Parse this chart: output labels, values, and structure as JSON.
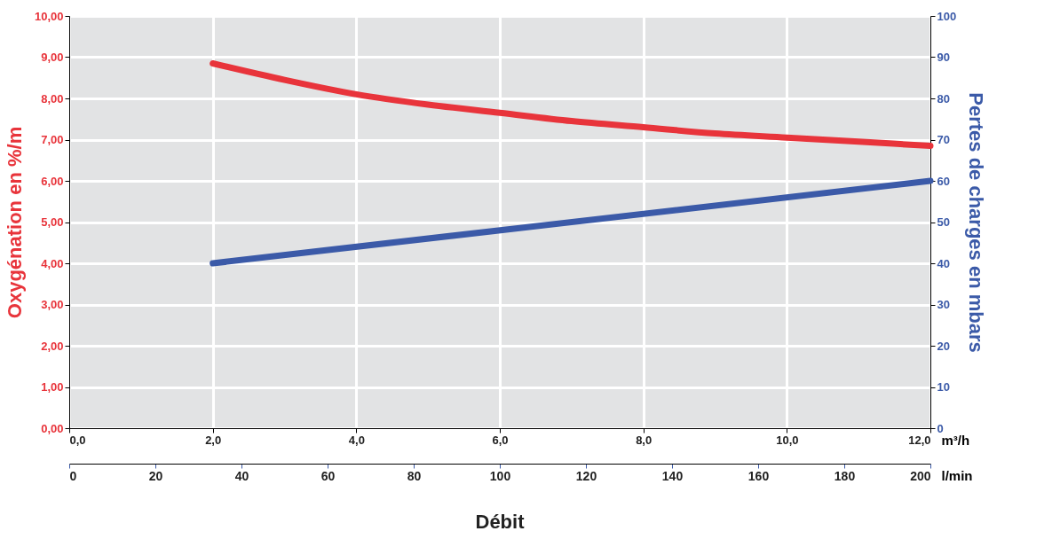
{
  "chart_data": {
    "type": "line",
    "xlabel": "m³/h",
    "x2label": "l/min",
    "ylabel": "Oxygénation en %/m",
    "y2label": "Pertes de charges en mbars",
    "annotations": [
      "Débit"
    ],
    "xlim": [
      0,
      12
    ],
    "xticks": [
      {
        "value": 0,
        "label": "0,0"
      },
      {
        "value": 2,
        "label": "2,0"
      },
      {
        "value": 4,
        "label": "4,0"
      },
      {
        "value": 6,
        "label": "6,0"
      },
      {
        "value": 8,
        "label": "8,0"
      },
      {
        "value": 10,
        "label": "10,0"
      },
      {
        "value": 12,
        "label": "12,0"
      }
    ],
    "x2lim": [
      0,
      200
    ],
    "x2ticks": [
      0,
      20,
      40,
      60,
      80,
      100,
      120,
      140,
      160,
      180,
      200
    ],
    "ylim": [
      0,
      10
    ],
    "yticks": [
      {
        "value": 0,
        "label": "0,00"
      },
      {
        "value": 1,
        "label": "1,00"
      },
      {
        "value": 2,
        "label": "2,00"
      },
      {
        "value": 3,
        "label": "3,00"
      },
      {
        "value": 4,
        "label": "4,00"
      },
      {
        "value": 5,
        "label": "5,00"
      },
      {
        "value": 6,
        "label": "6,00"
      },
      {
        "value": 7,
        "label": "7,00"
      },
      {
        "value": 8,
        "label": "8,00"
      },
      {
        "value": 9,
        "label": "9,00"
      },
      {
        "value": 10,
        "label": "10,00"
      }
    ],
    "y2lim": [
      0,
      100
    ],
    "y2ticks": [
      0,
      10,
      20,
      30,
      40,
      50,
      60,
      70,
      80,
      90,
      100
    ],
    "grid": true,
    "line_style": "solid",
    "series": [
      {
        "color": "#e8343b",
        "x": [
          2,
          3,
          4,
          5,
          6,
          7,
          8,
          9,
          10,
          11,
          12
        ],
        "values": [
          8.85,
          8.45,
          8.1,
          7.85,
          7.65,
          7.45,
          7.3,
          7.15,
          7.05,
          6.95,
          6.85
        ]
      },
      {
        "color": "#3b5aa8",
        "axis": "y2",
        "x": [
          2,
          12
        ],
        "values": [
          40,
          60
        ]
      }
    ]
  }
}
